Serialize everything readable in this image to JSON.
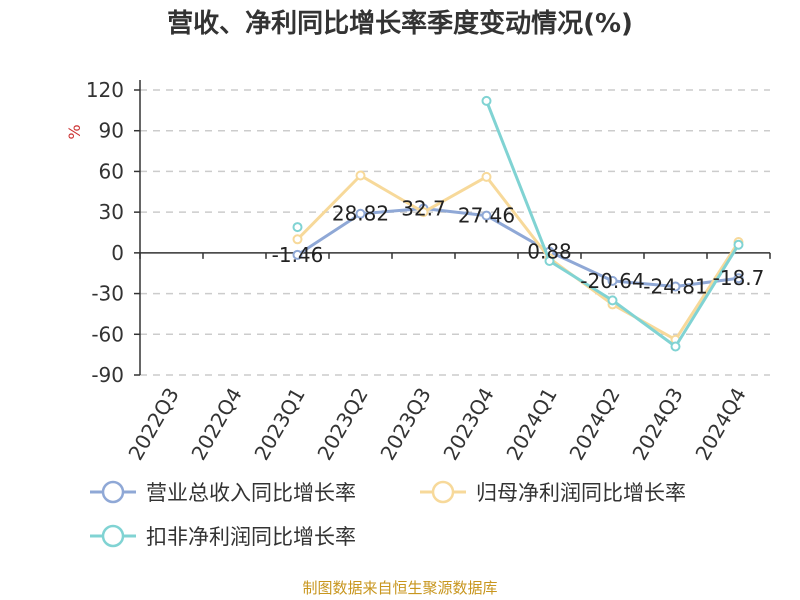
{
  "chart_data": {
    "type": "line",
    "title": "营收、净利同比增长率季度变动情况(%)",
    "unit_label": "%",
    "categories": [
      "2022Q3",
      "2022Q4",
      "2023Q1",
      "2023Q2",
      "2023Q3",
      "2023Q4",
      "2024Q1",
      "2024Q2",
      "2024Q3",
      "2024Q4"
    ],
    "ylim": [
      -90,
      120
    ],
    "yticks": [
      120,
      90,
      60,
      30,
      0,
      -30,
      -60,
      -90
    ],
    "ytick_labels": [
      "120",
      "90",
      "60",
      "30",
      "0",
      "-30",
      "-60",
      "-90"
    ],
    "grid": true,
    "legend_position": "bottom",
    "series": [
      {
        "name": "营业总收入同比增长率",
        "color": "#8fa8d6",
        "values": [
          null,
          null,
          -1.46,
          28.82,
          32.7,
          27.46,
          0.88,
          -20.64,
          -24.81,
          -18.7
        ],
        "labels": [
          null,
          null,
          "-1.46",
          "28.82",
          "32.7",
          "27.46",
          "0.88",
          "-20.64",
          "-24.81",
          "-18.7"
        ]
      },
      {
        "name": "归母净利润同比增长率",
        "color": "#f7d99a",
        "values": [
          null,
          null,
          10,
          57,
          30,
          56,
          -4,
          -38,
          -64,
          8
        ],
        "labels": []
      },
      {
        "name": "扣非净利润同比增长率",
        "color": "#80d3d3",
        "values": [
          null,
          null,
          19,
          null,
          null,
          112,
          -6,
          -35,
          -69,
          6
        ],
        "labels": []
      }
    ]
  },
  "footer": {
    "source": "制图数据来自恒生聚源数据库"
  }
}
